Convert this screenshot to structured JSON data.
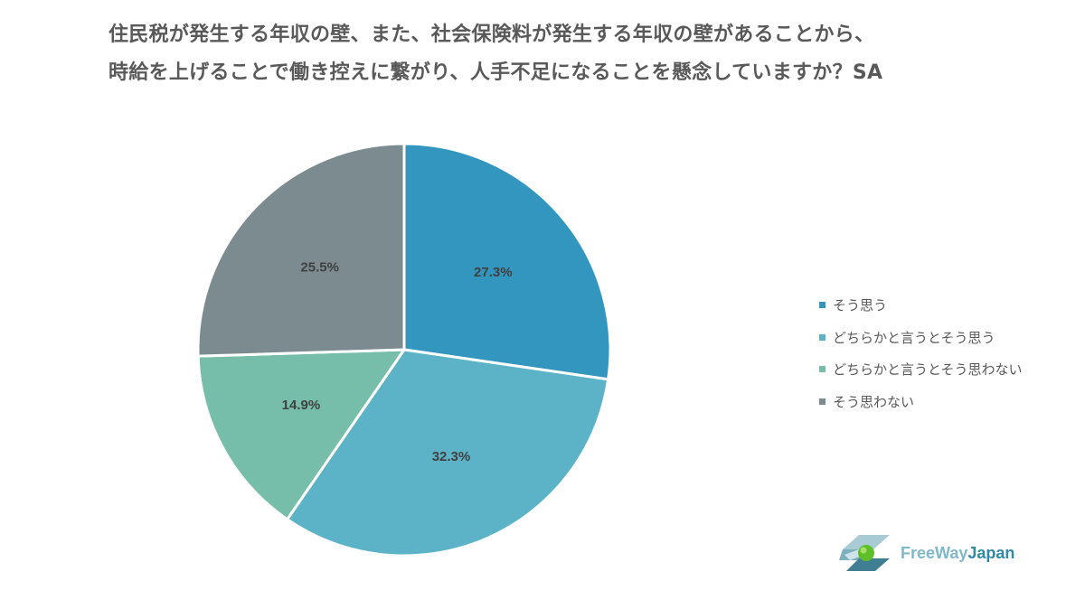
{
  "title": {
    "line1": "住民税が発生する年収の壁、また、社会保険料が発生する年収の壁があることから、",
    "line2": "時給を上げることで働き控えに繋がり、人手不足になることを懸念していますか？SA"
  },
  "chart_data": {
    "type": "pie",
    "title": "住民税が発生する年収の壁、また、社会保険料が発生する年収の壁があることから、時給を上げることで働き控えに繋がり、人手不足になることを懸念していますか？SA",
    "slices": [
      {
        "label": "そう思う",
        "value": 27.3,
        "display": "27.3%",
        "color": "#3396bf"
      },
      {
        "label": "どちらかと言うとそう思う",
        "value": 32.3,
        "display": "32.3%",
        "color": "#5cb3c8"
      },
      {
        "label": "どちらかと言うとそう思わない",
        "value": 14.9,
        "display": "14.9%",
        "color": "#76bea9"
      },
      {
        "label": "そう思わない",
        "value": 25.5,
        "display": "25.5%",
        "color": "#7c8b8f"
      }
    ],
    "start_angle_deg": 0,
    "direction": "clockwise",
    "legend_position": "right"
  },
  "logo": {
    "text_free": "FreeWay",
    "text_japan": "Japan",
    "color_light": "#7fb8c9",
    "color_dark": "#2f8aa7",
    "accent_green": "#5fbf2a"
  }
}
